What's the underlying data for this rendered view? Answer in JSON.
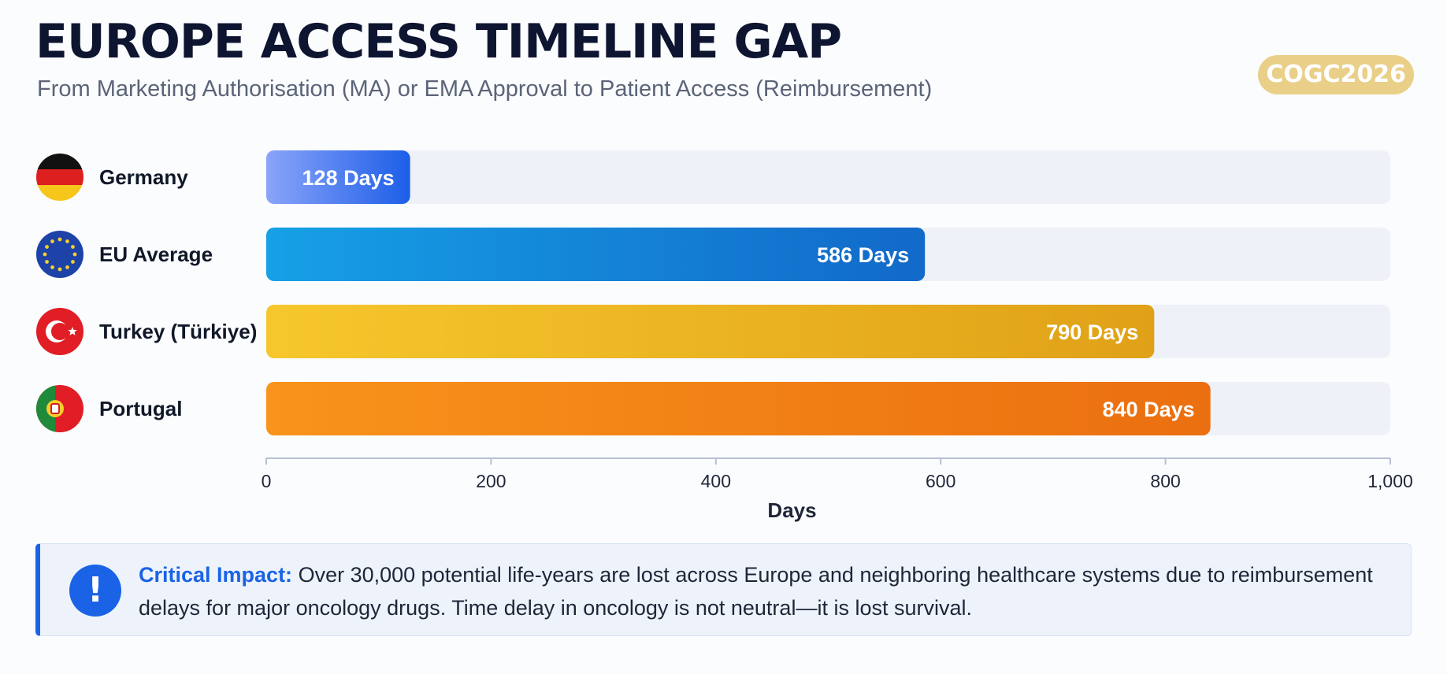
{
  "header": {
    "title": "EUROPE ACCESS TIMELINE GAP",
    "subtitle": "From Marketing Authorisation (MA) or EMA Approval to Patient Access (Reimbursement)",
    "badge": "COGC2026"
  },
  "chart_data": {
    "type": "bar",
    "orientation": "horizontal",
    "categories": [
      "Germany",
      "EU Average",
      "Turkey (Türkiye)",
      "Portugal"
    ],
    "values": [
      128,
      586,
      790,
      840
    ],
    "value_labels": [
      "128 Days",
      "586 Days",
      "790 Days",
      "840 Days"
    ],
    "flag_icons": [
      "germany-flag-icon",
      "eu-flag-icon",
      "turkey-flag-icon",
      "portugal-flag-icon"
    ],
    "colors": [
      [
        "#8aa4f8",
        "#1d5ee8"
      ],
      [
        "#16a0e6",
        "#1269c9"
      ],
      [
        "#f6c72c",
        "#e0a118"
      ],
      [
        "#f8931b",
        "#eb6f10"
      ]
    ],
    "track_color": "#eef1f7",
    "xlabel": "Days",
    "xlim": [
      0,
      1000
    ],
    "xticks": [
      0,
      200,
      400,
      600,
      800,
      1000
    ],
    "xtick_labels": [
      "0",
      "200",
      "400",
      "600",
      "800",
      "1,000"
    ],
    "grid": false
  },
  "callout": {
    "icon": "exclamation-icon",
    "lead": "Critical Impact:",
    "text": " Over 30,000 potential life-years are lost across Europe and neighboring healthcare systems due to reimbursement delays for major oncology drugs. Time delay in oncology is not neutral—it is lost survival."
  }
}
